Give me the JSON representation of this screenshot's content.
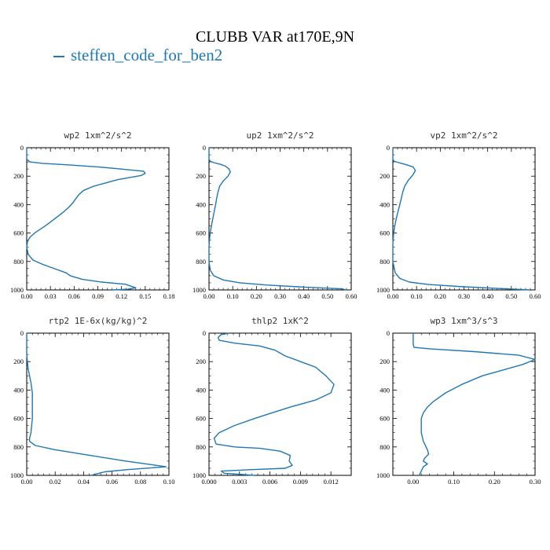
{
  "title": "CLUBB VAR at170E,9N",
  "legend": {
    "label": "steffen_code_for_ben2",
    "color": "#1f77b4"
  },
  "chart_data": [
    {
      "type": "line",
      "title": "wp2  1xm^2/s^2",
      "xlim": [
        0,
        0.18
      ],
      "xticks": [
        "0.00",
        "0.03",
        "0.06",
        "0.09",
        "0.12",
        "0.15",
        "0.18"
      ],
      "ylim": [
        1000,
        0
      ],
      "yticks": [
        "0",
        "200",
        "400",
        "600",
        "800",
        "1000"
      ],
      "series": [
        {
          "color": "#1f77b4",
          "x": [
            0,
            0,
            0.004,
            0.02,
            0.05,
            0.09,
            0.12,
            0.148,
            0.15,
            0.145,
            0.115,
            0.085,
            0.072,
            0.066,
            0.062,
            0.058,
            0.053,
            0.047,
            0.04,
            0.033,
            0.026,
            0.018,
            0.01,
            0.004,
            0.001,
            0.0,
            0.002,
            0.008,
            0.02,
            0.035,
            0.05,
            0.055,
            0.07,
            0.095,
            0.125,
            0.138,
            0.128,
            0.108
          ],
          "y": [
            0,
            80,
            100,
            110,
            120,
            135,
            150,
            165,
            180,
            195,
            225,
            270,
            300,
            330,
            360,
            390,
            420,
            450,
            480,
            510,
            540,
            570,
            600,
            630,
            660,
            700,
            750,
            790,
            820,
            850,
            880,
            900,
            925,
            945,
            960,
            985,
            995,
            1000
          ]
        }
      ]
    },
    {
      "type": "line",
      "title": "up2  1xm^2/s^2",
      "xlim": [
        0,
        0.6
      ],
      "xticks": [
        "0.00",
        "0.10",
        "0.20",
        "0.30",
        "0.40",
        "0.50",
        "0.60"
      ],
      "ylim": [
        1000,
        0
      ],
      "yticks": [
        "0",
        "200",
        "400",
        "600",
        "800",
        "1000"
      ],
      "series": [
        {
          "color": "#1f77b4",
          "x": [
            0,
            0,
            0.005,
            0.02,
            0.045,
            0.07,
            0.085,
            0.09,
            0.08,
            0.06,
            0.045,
            0.038,
            0.033,
            0.028,
            0.022,
            0.016,
            0.01,
            0.005,
            0.002,
            0.0,
            0.0,
            0.005,
            0.02,
            0.06,
            0.13,
            0.24,
            0.4,
            0.56,
            0.58
          ],
          "y": [
            0,
            80,
            95,
            105,
            115,
            130,
            150,
            170,
            200,
            235,
            270,
            310,
            350,
            400,
            450,
            500,
            550,
            600,
            650,
            700,
            800,
            860,
            900,
            930,
            950,
            965,
            980,
            992,
            1000
          ]
        }
      ]
    },
    {
      "type": "line",
      "title": "vp2  1xm^2/s^2",
      "xlim": [
        0,
        0.6
      ],
      "xticks": [
        "0.00",
        "0.10",
        "0.20",
        "0.30",
        "0.40",
        "0.50",
        "0.60"
      ],
      "ylim": [
        1000,
        0
      ],
      "yticks": [
        "0",
        "200",
        "400",
        "600",
        "800",
        "1000"
      ],
      "series": [
        {
          "color": "#1f77b4",
          "x": [
            0,
            0,
            0.005,
            0.025,
            0.055,
            0.085,
            0.095,
            0.085,
            0.065,
            0.05,
            0.042,
            0.035,
            0.028,
            0.02,
            0.013,
            0.007,
            0.003,
            0.0,
            0.0,
            0.01,
            0.03,
            0.07,
            0.15,
            0.3,
            0.48,
            0.58
          ],
          "y": [
            0,
            80,
            95,
            105,
            118,
            135,
            160,
            190,
            230,
            270,
            310,
            360,
            410,
            460,
            510,
            560,
            610,
            680,
            800,
            880,
            920,
            945,
            962,
            978,
            992,
            1000
          ]
        }
      ]
    },
    {
      "type": "line",
      "title": "rtp2  1E-6x(kg/kg)^2",
      "xlim": [
        0,
        0.1
      ],
      "xticks": [
        "0.00",
        "0.02",
        "0.04",
        "0.06",
        "0.08",
        "0.10"
      ],
      "ylim": [
        1000,
        0
      ],
      "yticks": [
        "0",
        "200",
        "400",
        "600",
        "800",
        "1000"
      ],
      "series": [
        {
          "color": "#1f77b4",
          "x": [
            0,
            0,
            0.001,
            0.003,
            0.004,
            0.004,
            0.004,
            0.003,
            0.002,
            0.002,
            0.006,
            0.02,
            0.045,
            0.07,
            0.088,
            0.098,
            0.07,
            0.055,
            0.045
          ],
          "y": [
            0,
            150,
            250,
            350,
            420,
            500,
            600,
            700,
            740,
            760,
            790,
            820,
            860,
            900,
            925,
            940,
            960,
            975,
            1000
          ]
        }
      ]
    },
    {
      "type": "line",
      "title": "thlp2  1xK^2",
      "xlim": [
        0,
        0.014
      ],
      "xticks": [
        "0.000",
        "0.003",
        "0.006",
        "0.009",
        "0.012"
      ],
      "ylim": [
        1000,
        0
      ],
      "yticks": [
        "0",
        "200",
        "400",
        "600",
        "800",
        "1000"
      ],
      "series": [
        {
          "color": "#1f77b4",
          "x": [
            0.002,
            0.0012,
            0.0009,
            0.001,
            0.0025,
            0.005,
            0.0065,
            0.0075,
            0.009,
            0.0105,
            0.0115,
            0.0123,
            0.012,
            0.0105,
            0.008,
            0.0062,
            0.0045,
            0.0025,
            0.001,
            0.0005,
            0.0007,
            0.0025,
            0.005,
            0.007,
            0.008,
            0.0079,
            0.0082,
            0.0075,
            0.004,
            0.0012,
            0.0015,
            0.0045
          ],
          "y": [
            0,
            10,
            30,
            50,
            70,
            90,
            120,
            160,
            200,
            240,
            300,
            360,
            420,
            470,
            520,
            560,
            600,
            650,
            700,
            740,
            780,
            800,
            810,
            830,
            860,
            900,
            930,
            950,
            960,
            970,
            985,
            1000
          ]
        }
      ]
    },
    {
      "type": "line",
      "title": "wp3  1xm^3/s^3",
      "xlim": [
        -0.05,
        0.3
      ],
      "xticks": [
        "0.00",
        "0.10",
        "0.20",
        "0.30"
      ],
      "ylim": [
        1000,
        0
      ],
      "yticks": [
        "0",
        "200",
        "400",
        "600",
        "800",
        "1000"
      ],
      "series": [
        {
          "color": "#1f77b4",
          "x": [
            0,
            0,
            0.002,
            0.04,
            0.15,
            0.26,
            0.3,
            0.27,
            0.22,
            0.17,
            0.12,
            0.08,
            0.05,
            0.035,
            0.025,
            0.02,
            0.02,
            0.02,
            0.025,
            0.035,
            0.038,
            0.028,
            0.025,
            0.035,
            0.025,
            0.015
          ],
          "y": [
            0,
            80,
            100,
            110,
            130,
            155,
            185,
            220,
            260,
            300,
            360,
            420,
            480,
            520,
            560,
            600,
            650,
            700,
            760,
            820,
            850,
            880,
            900,
            920,
            940,
            1000
          ]
        }
      ]
    }
  ]
}
